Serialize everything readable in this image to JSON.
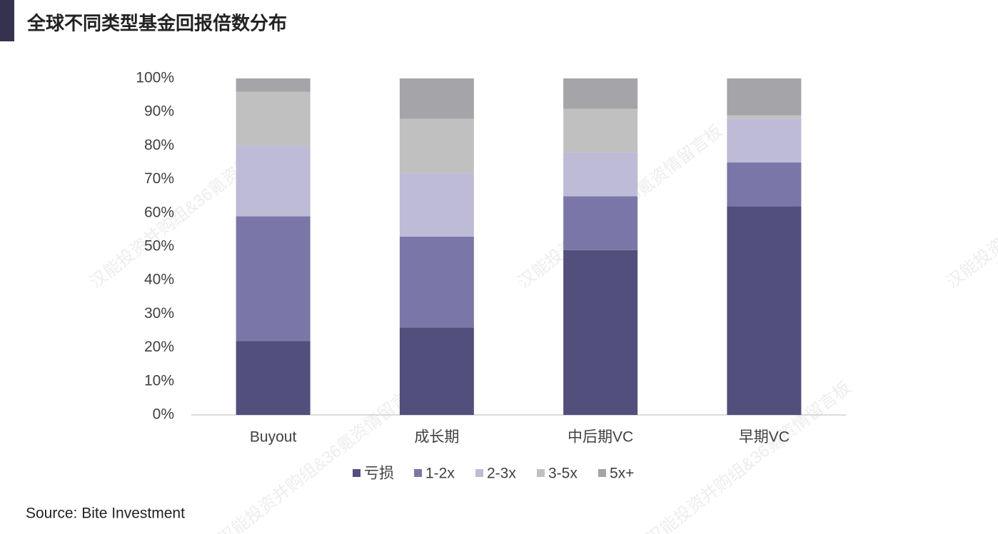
{
  "chart_data": {
    "type": "stacked_bar",
    "title": "全球不同类型基金回报倍数分布",
    "source": "Source: Bite Investment",
    "watermark": "汉能投资并购组&36氪资情留言板",
    "categories": [
      "Buyout",
      "成长期",
      "中后期VC",
      "早期VC"
    ],
    "series": [
      {
        "name": "亏损",
        "color": "#524f7d",
        "values": [
          22,
          26,
          49,
          62
        ]
      },
      {
        "name": "1-2x",
        "color": "#7a77a8",
        "values": [
          37,
          27,
          16,
          13
        ]
      },
      {
        "name": "2-3x",
        "color": "#bdbbd6",
        "values": [
          21,
          19,
          13,
          13
        ]
      },
      {
        "name": "3-5x",
        "color": "#c0c0c0",
        "values": [
          16,
          16,
          13,
          1
        ]
      },
      {
        "name": "5x+",
        "color": "#a5a4a9",
        "values": [
          4,
          12,
          9,
          11
        ]
      }
    ],
    "ylim": [
      0,
      100
    ],
    "yticks": [
      {
        "value": 0,
        "label": "0%"
      },
      {
        "value": 10,
        "label": "10%"
      },
      {
        "value": 20,
        "label": "20%"
      },
      {
        "value": 30,
        "label": "30%"
      },
      {
        "value": 40,
        "label": "40%"
      },
      {
        "value": 50,
        "label": "50%"
      },
      {
        "value": 60,
        "label": "60%"
      },
      {
        "value": 70,
        "label": "70%"
      },
      {
        "value": 80,
        "label": "80%"
      },
      {
        "value": 90,
        "label": "90%"
      },
      {
        "value": 100,
        "label": "100%"
      }
    ],
    "legend": "bottom"
  }
}
